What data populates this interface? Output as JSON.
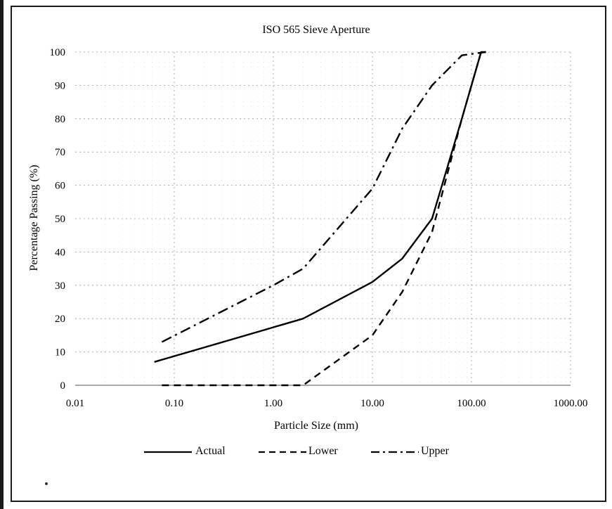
{
  "chart_data": {
    "type": "line",
    "title": "ISO 565 Sieve Aperture",
    "xlabel": "Particle Size (mm)",
    "ylabel": "Percentage Passing (%)",
    "xscale": "log",
    "xlim": [
      0.01,
      1000
    ],
    "ylim": [
      0,
      100
    ],
    "x_ticks": [
      "0.01",
      "0.10",
      "1.00",
      "10.00",
      "100.00",
      "1000.00"
    ],
    "y_ticks": [
      "0",
      "10",
      "20",
      "30",
      "40",
      "50",
      "60",
      "70",
      "80",
      "90",
      "100"
    ],
    "grid": "dotted",
    "legend_position": "bottom",
    "series": [
      {
        "name": "Actual",
        "style": "solid",
        "points": [
          [
            0.063,
            7
          ],
          [
            2,
            20
          ],
          [
            10,
            31
          ],
          [
            20,
            38
          ],
          [
            40,
            50
          ],
          [
            80,
            80
          ],
          [
            125,
            100
          ],
          [
            140,
            100
          ]
        ]
      },
      {
        "name": "Lower",
        "style": "dashed",
        "points": [
          [
            0.075,
            0
          ],
          [
            2,
            0
          ],
          [
            10,
            15
          ],
          [
            20,
            28
          ],
          [
            40,
            46
          ],
          [
            80,
            80
          ],
          [
            125,
            100
          ]
        ]
      },
      {
        "name": "Upper",
        "style": "dash-dot",
        "points": [
          [
            0.075,
            13
          ],
          [
            1,
            30
          ],
          [
            2,
            35
          ],
          [
            10,
            59
          ],
          [
            20,
            77
          ],
          [
            40,
            90
          ],
          [
            80,
            99
          ],
          [
            140,
            100
          ]
        ]
      }
    ]
  }
}
